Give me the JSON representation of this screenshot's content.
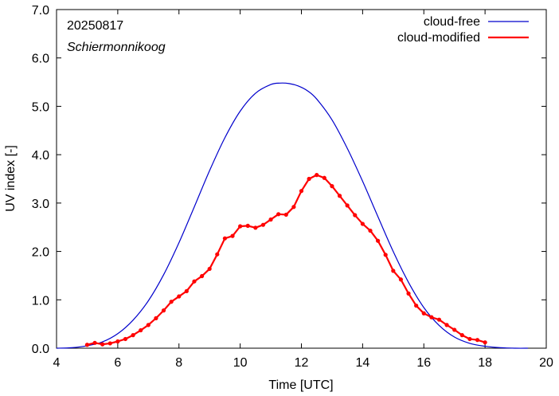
{
  "chart_data": {
    "type": "line",
    "title": "",
    "xlabel": "Time  [UTC]",
    "ylabel": "UV index  [-]",
    "xlim": [
      4,
      20
    ],
    "ylim": [
      0,
      7
    ],
    "x_ticks": [
      4,
      6,
      8,
      10,
      12,
      14,
      16,
      18,
      20
    ],
    "x_tick_labels": [
      "4",
      "6",
      "8",
      "10",
      "12",
      "14",
      "16",
      "18",
      "20"
    ],
    "y_ticks": [
      0,
      1,
      2,
      3,
      4,
      5,
      6,
      7
    ],
    "y_tick_labels": [
      "0.0",
      "1.0",
      "2.0",
      "3.0",
      "4.0",
      "5.0",
      "6.0",
      "7.0"
    ],
    "grid": false,
    "legend_position": "top-right",
    "annotations": [
      {
        "text": "20250817",
        "style": "normal"
      },
      {
        "text": "Schiermonnikoog",
        "style": "italic"
      }
    ],
    "series": [
      {
        "name": "cloud-free",
        "color": "#0000cc",
        "markers": false,
        "x": [
          4.0,
          4.5,
          5.0,
          5.5,
          6.0,
          6.5,
          7.0,
          7.5,
          8.0,
          8.5,
          9.0,
          9.5,
          10.0,
          10.5,
          11.0,
          11.3,
          11.6,
          11.9,
          12.2,
          12.5,
          13.0,
          13.5,
          14.0,
          14.5,
          15.0,
          15.5,
          16.0,
          16.5,
          17.0,
          17.5,
          18.0,
          18.5,
          19.0,
          19.4
        ],
        "y": [
          0.0,
          0.01,
          0.05,
          0.13,
          0.3,
          0.58,
          0.98,
          1.52,
          2.18,
          2.92,
          3.67,
          4.35,
          4.9,
          5.27,
          5.45,
          5.48,
          5.47,
          5.42,
          5.32,
          5.15,
          4.72,
          4.13,
          3.45,
          2.72,
          2.0,
          1.36,
          0.84,
          0.47,
          0.23,
          0.1,
          0.04,
          0.01,
          0.0,
          0.0
        ]
      },
      {
        "name": "cloud-modified",
        "color": "#ff0000",
        "markers": true,
        "x": [
          5.0,
          5.25,
          5.5,
          5.75,
          6.0,
          6.25,
          6.5,
          6.75,
          7.0,
          7.25,
          7.5,
          7.75,
          8.0,
          8.25,
          8.5,
          8.75,
          9.0,
          9.25,
          9.5,
          9.75,
          10.0,
          10.25,
          10.5,
          10.75,
          11.0,
          11.25,
          11.5,
          11.75,
          12.0,
          12.25,
          12.5,
          12.75,
          13.0,
          13.25,
          13.5,
          13.75,
          14.0,
          14.25,
          14.5,
          14.75,
          15.0,
          15.25,
          15.5,
          15.75,
          16.0,
          16.25,
          16.5,
          16.75,
          17.0,
          17.25,
          17.5,
          17.75,
          18.0
        ],
        "y": [
          0.07,
          0.11,
          0.08,
          0.1,
          0.14,
          0.19,
          0.27,
          0.37,
          0.48,
          0.62,
          0.78,
          0.96,
          1.07,
          1.18,
          1.38,
          1.49,
          1.64,
          1.94,
          2.27,
          2.32,
          2.52,
          2.53,
          2.49,
          2.55,
          2.66,
          2.77,
          2.76,
          2.92,
          3.25,
          3.5,
          3.58,
          3.52,
          3.35,
          3.15,
          2.95,
          2.75,
          2.57,
          2.43,
          2.22,
          1.93,
          1.6,
          1.42,
          1.13,
          0.88,
          0.72,
          0.64,
          0.59,
          0.48,
          0.38,
          0.27,
          0.19,
          0.17,
          0.12
        ]
      }
    ]
  }
}
